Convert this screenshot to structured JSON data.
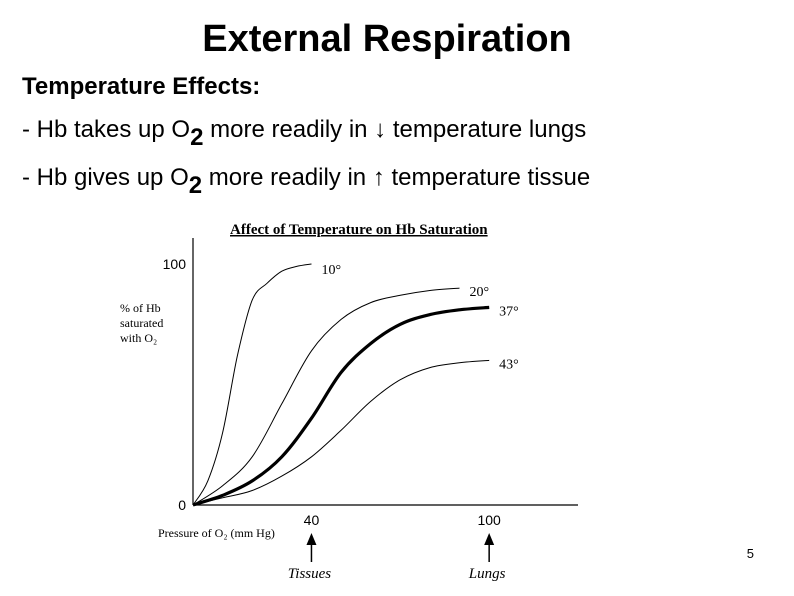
{
  "slide": {
    "title": "External Respiration",
    "subtitle": "Temperature Effects:",
    "bullets": [
      {
        "pre": "- Hb takes up O",
        "sub": "2",
        "post": " more readily in ↓ temperature lungs"
      },
      {
        "pre": "- Hb gives up O",
        "sub": "2",
        "post": " more readily in ↑ temperature tissue"
      }
    ],
    "page_number": "5"
  },
  "chart_data": {
    "type": "line",
    "title": "Affect of Temperature on Hb Saturation",
    "ylabel": [
      "% of Hb",
      "saturated",
      "with O₂"
    ],
    "xlabel": "Pressure of O₂ (mm Hg)",
    "ylim": [
      0,
      100
    ],
    "xlim": [
      0,
      130
    ],
    "y_ticks": [
      {
        "value": 0,
        "label": "0"
      },
      {
        "value": 100,
        "label": "100"
      }
    ],
    "x_ticks": [
      {
        "value": 40,
        "label": "40",
        "annotation": "Tissues"
      },
      {
        "value": 100,
        "label": "100",
        "annotation": "Lungs"
      }
    ],
    "grid": false,
    "series": [
      {
        "name": "10°",
        "thick": false,
        "x": [
          0,
          5,
          10,
          15,
          20,
          25,
          30,
          35,
          40
        ],
        "y": [
          0,
          10,
          30,
          62,
          85,
          92,
          97,
          99,
          100
        ]
      },
      {
        "name": "20°",
        "thick": false,
        "x": [
          0,
          10,
          20,
          30,
          40,
          50,
          60,
          70,
          80,
          90
        ],
        "y": [
          0,
          8,
          20,
          42,
          64,
          77,
          84,
          87,
          89,
          90
        ]
      },
      {
        "name": "37°",
        "thick": true,
        "x": [
          0,
          10,
          20,
          30,
          40,
          50,
          60,
          70,
          80,
          90,
          100
        ],
        "y": [
          0,
          4,
          10,
          20,
          36,
          55,
          67,
          75,
          79,
          81,
          82
        ]
      },
      {
        "name": "43°",
        "thick": false,
        "x": [
          0,
          10,
          20,
          30,
          40,
          50,
          60,
          70,
          80,
          90,
          100
        ],
        "y": [
          0,
          3,
          6,
          12,
          20,
          31,
          43,
          52,
          57,
          59,
          60
        ]
      }
    ]
  }
}
